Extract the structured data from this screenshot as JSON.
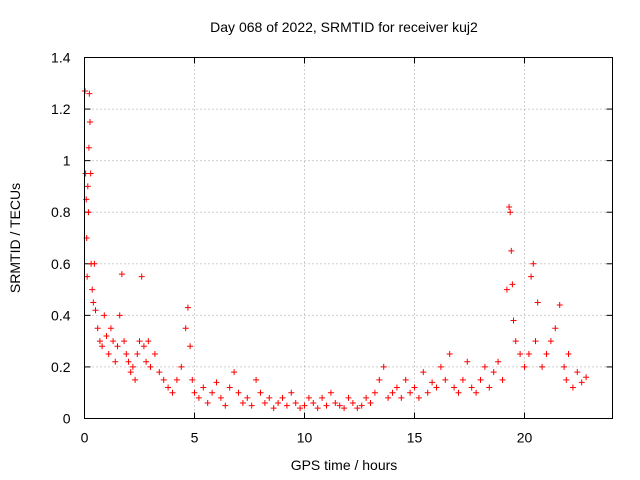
{
  "chart_data": {
    "type": "scatter",
    "title": "Day 068 of 2022, SRMTID for receiver kuj2",
    "xlabel": "GPS time / hours",
    "ylabel": "SRMTID / TECUs",
    "xlim": [
      0,
      24
    ],
    "ylim": [
      0,
      1.4
    ],
    "xticks": [
      0,
      5,
      10,
      15,
      20
    ],
    "xtick_labels": [
      "0",
      "5",
      "10",
      "15",
      "20"
    ],
    "yticks": [
      0,
      0.2,
      0.4,
      0.6,
      0.8,
      1,
      1.2,
      1.4
    ],
    "ytick_labels": [
      "0",
      "0.2",
      "0.4",
      "0.6",
      "0.8",
      "1",
      "1.2",
      "1.4"
    ],
    "grid": true,
    "marker": "+",
    "color": "#ff0000",
    "series": [
      {
        "name": "kuj2",
        "x": [
          0.02,
          0.05,
          0.08,
          0.1,
          0.12,
          0.15,
          0.18,
          0.2,
          0.22,
          0.25,
          0.28,
          0.3,
          0.35,
          0.4,
          0.45,
          0.5,
          0.6,
          0.7,
          0.8,
          0.9,
          1.0,
          1.1,
          1.2,
          1.3,
          1.4,
          1.5,
          1.6,
          1.7,
          1.8,
          1.9,
          2.0,
          2.1,
          2.2,
          2.3,
          2.4,
          2.5,
          2.6,
          2.7,
          2.8,
          2.9,
          3.0,
          3.2,
          3.4,
          3.6,
          3.8,
          4.0,
          4.2,
          4.4,
          4.6,
          4.7,
          4.8,
          4.9,
          5.0,
          5.2,
          5.4,
          5.6,
          5.8,
          6.0,
          6.2,
          6.4,
          6.6,
          6.8,
          7.0,
          7.2,
          7.4,
          7.6,
          7.8,
          8.0,
          8.2,
          8.4,
          8.6,
          8.8,
          9.0,
          9.2,
          9.4,
          9.6,
          9.8,
          10.0,
          10.2,
          10.4,
          10.6,
          10.8,
          11.0,
          11.2,
          11.4,
          11.6,
          11.8,
          12.0,
          12.2,
          12.4,
          12.6,
          12.8,
          13.0,
          13.2,
          13.4,
          13.6,
          13.8,
          14.0,
          14.2,
          14.4,
          14.6,
          14.8,
          15.0,
          15.2,
          15.4,
          15.6,
          15.8,
          16.0,
          16.2,
          16.4,
          16.6,
          16.8,
          17.0,
          17.2,
          17.4,
          17.6,
          17.8,
          18.0,
          18.2,
          18.4,
          18.6,
          18.8,
          19.0,
          19.2,
          19.3,
          19.35,
          19.4,
          19.45,
          19.5,
          19.6,
          19.8,
          20.0,
          20.2,
          20.3,
          20.4,
          20.5,
          20.6,
          20.8,
          21.0,
          21.2,
          21.4,
          21.6,
          21.8,
          21.9,
          22.0,
          22.2,
          22.4,
          22.6,
          22.8
        ],
        "y": [
          1.27,
          0.95,
          0.85,
          0.7,
          0.55,
          0.9,
          0.8,
          1.05,
          1.26,
          1.15,
          0.95,
          0.6,
          0.5,
          0.45,
          0.6,
          0.42,
          0.35,
          0.3,
          0.28,
          0.4,
          0.32,
          0.25,
          0.35,
          0.3,
          0.22,
          0.28,
          0.4,
          0.56,
          0.3,
          0.25,
          0.22,
          0.18,
          0.2,
          0.15,
          0.25,
          0.3,
          0.55,
          0.28,
          0.22,
          0.3,
          0.2,
          0.25,
          0.18,
          0.15,
          0.12,
          0.1,
          0.15,
          0.2,
          0.35,
          0.43,
          0.28,
          0.15,
          0.1,
          0.08,
          0.12,
          0.06,
          0.1,
          0.14,
          0.08,
          0.05,
          0.12,
          0.18,
          0.1,
          0.06,
          0.08,
          0.05,
          0.15,
          0.1,
          0.06,
          0.08,
          0.04,
          0.06,
          0.08,
          0.05,
          0.1,
          0.06,
          0.04,
          0.05,
          0.08,
          0.06,
          0.04,
          0.08,
          0.05,
          0.1,
          0.06,
          0.05,
          0.04,
          0.08,
          0.06,
          0.04,
          0.05,
          0.08,
          0.06,
          0.1,
          0.15,
          0.2,
          0.08,
          0.1,
          0.12,
          0.08,
          0.15,
          0.1,
          0.12,
          0.08,
          0.18,
          0.1,
          0.14,
          0.12,
          0.2,
          0.15,
          0.25,
          0.12,
          0.1,
          0.15,
          0.22,
          0.12,
          0.1,
          0.15,
          0.2,
          0.12,
          0.18,
          0.22,
          0.15,
          0.5,
          0.82,
          0.8,
          0.65,
          0.52,
          0.38,
          0.3,
          0.25,
          0.2,
          0.25,
          0.55,
          0.6,
          0.3,
          0.45,
          0.2,
          0.25,
          0.3,
          0.35,
          0.44,
          0.2,
          0.15,
          0.25,
          0.12,
          0.18,
          0.14,
          0.16
        ]
      }
    ]
  }
}
